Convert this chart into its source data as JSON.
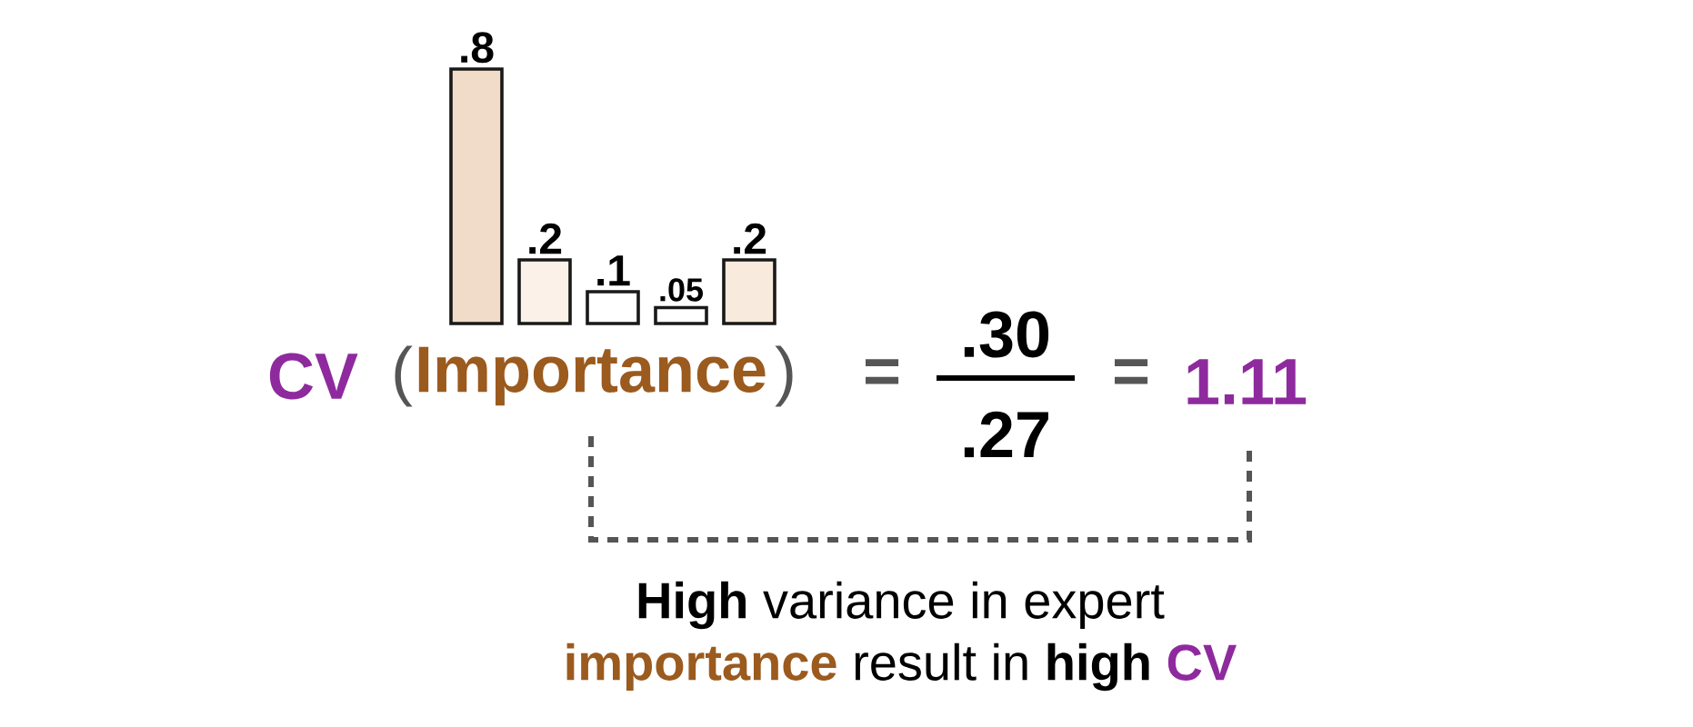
{
  "chart_data": {
    "type": "bar",
    "categories": [
      null,
      null,
      null,
      null,
      null
    ],
    "values": [
      0.8,
      0.2,
      0.1,
      0.05,
      0.2
    ],
    "value_labels": [
      ".8",
      ".2",
      ".1",
      ".05",
      ".2"
    ],
    "colors": [
      "#f0dcc8",
      "#fbf1e8",
      "#ffffff",
      "#ffffff",
      "#f8eadc"
    ],
    "annotations": [
      "CV",
      "(",
      "Importance",
      ")",
      "=",
      ".30",
      ".27",
      "=",
      "1.11",
      "**High** variance in expert",
      "importance",
      "result in",
      "high",
      "CV"
    ]
  }
}
